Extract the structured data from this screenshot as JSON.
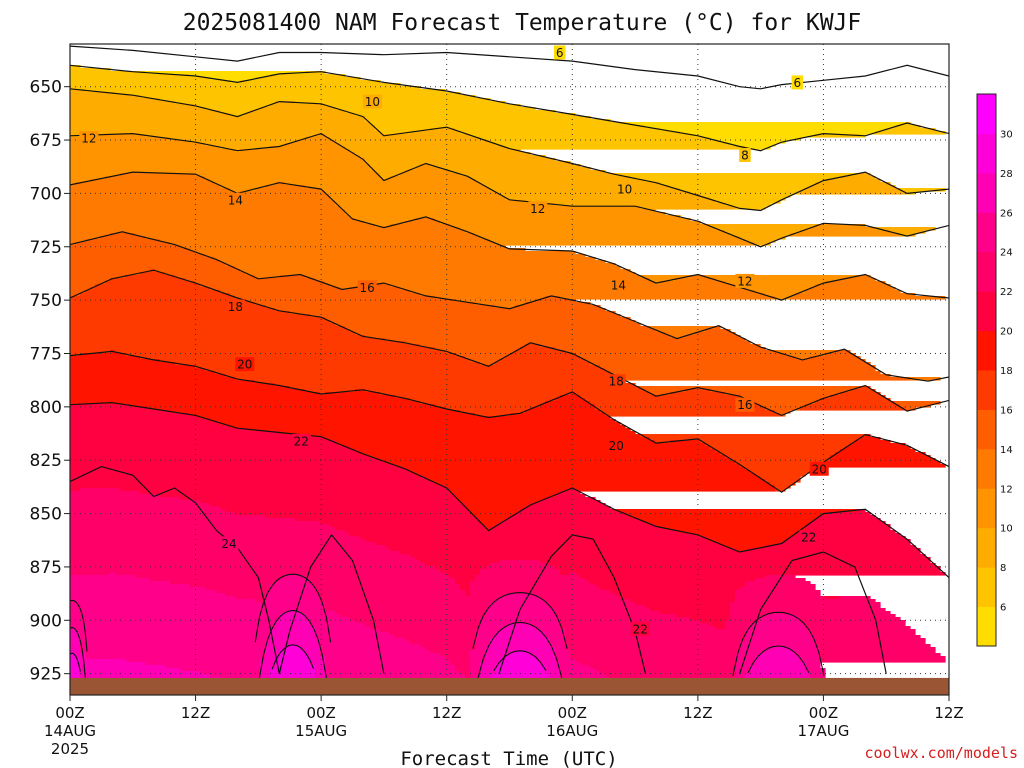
{
  "chart_data": {
    "type": "heatmap",
    "title": "2025081400 NAM Forecast Temperature (°C) for KWJF",
    "xlabel": "Forecast Time (UTC)",
    "ylabel": "",
    "credit": "coolwx.com/models",
    "x_ticks": [
      {
        "hour": 0,
        "line1": "00Z",
        "line2": "14AUG",
        "line3": "2025"
      },
      {
        "hour": 12,
        "line1": "12Z",
        "line2": "",
        "line3": ""
      },
      {
        "hour": 24,
        "line1": "00Z",
        "line2": "15AUG",
        "line3": ""
      },
      {
        "hour": 36,
        "line1": "12Z",
        "line2": "",
        "line3": ""
      },
      {
        "hour": 48,
        "line1": "00Z",
        "line2": "16AUG",
        "line3": ""
      },
      {
        "hour": 60,
        "line1": "12Z",
        "line2": "",
        "line3": ""
      },
      {
        "hour": 72,
        "line1": "00Z",
        "line2": "17AUG",
        "line3": ""
      },
      {
        "hour": 84,
        "line1": "12Z",
        "line2": "",
        "line3": ""
      }
    ],
    "x_range_hours": [
      0,
      84
    ],
    "y_ticks": [
      "650",
      "675",
      "700",
      "725",
      "750",
      "775",
      "800",
      "825",
      "850",
      "875",
      "900",
      "925"
    ],
    "y_range_hpa": [
      630,
      935
    ],
    "y_axis": "pressure (hPa), increasing downward",
    "grid": "dotted at every tick",
    "colorbar": {
      "levels": [
        6,
        8,
        10,
        12,
        14,
        16,
        18,
        20,
        22,
        24,
        26,
        28,
        30,
        32
      ],
      "colors": [
        "#ffdd00",
        "#ffc400",
        "#ffac00",
        "#ff9400",
        "#ff7a00",
        "#ff5e00",
        "#ff3a00",
        "#ff1400",
        "#ff0040",
        "#ff0068",
        "#ff008a",
        "#ff00b4",
        "#ff00d8",
        "#ff00ff"
      ]
    },
    "surface_color": "#9a5535",
    "surface_top_hpa": 927,
    "isotherms": [
      {
        "value": 6,
        "points": [
          [
            0,
            631
          ],
          [
            6,
            633
          ],
          [
            12,
            636
          ],
          [
            16,
            638
          ],
          [
            20,
            634
          ],
          [
            24,
            634
          ],
          [
            30,
            635
          ],
          [
            36,
            634
          ],
          [
            42,
            636
          ],
          [
            48,
            638
          ],
          [
            54,
            642
          ],
          [
            60,
            645
          ],
          [
            64,
            650
          ],
          [
            66,
            651
          ],
          [
            68,
            649
          ],
          [
            72,
            647
          ],
          [
            76,
            645
          ],
          [
            80,
            640
          ],
          [
            84,
            645
          ]
        ]
      },
      {
        "value": 8,
        "points": [
          [
            0,
            640
          ],
          [
            6,
            643
          ],
          [
            12,
            645
          ],
          [
            16,
            648
          ],
          [
            20,
            644
          ],
          [
            24,
            643
          ],
          [
            30,
            648
          ],
          [
            36,
            652
          ],
          [
            42,
            658
          ],
          [
            48,
            663
          ],
          [
            54,
            668
          ],
          [
            60,
            673
          ],
          [
            64,
            678
          ],
          [
            66,
            680
          ],
          [
            68,
            676
          ],
          [
            72,
            672
          ],
          [
            76,
            673
          ],
          [
            80,
            667
          ],
          [
            84,
            672
          ]
        ]
      },
      {
        "value": 10,
        "points": [
          [
            0,
            651
          ],
          [
            6,
            654
          ],
          [
            12,
            659
          ],
          [
            16,
            664
          ],
          [
            20,
            657
          ],
          [
            24,
            658
          ],
          [
            28,
            664
          ],
          [
            30,
            673
          ],
          [
            36,
            669
          ],
          [
            42,
            679
          ],
          [
            48,
            686
          ],
          [
            52,
            691
          ],
          [
            56,
            695
          ],
          [
            60,
            701
          ],
          [
            64,
            707
          ],
          [
            66,
            708
          ],
          [
            68,
            703
          ],
          [
            72,
            694
          ],
          [
            76,
            690
          ],
          [
            80,
            700
          ],
          [
            84,
            698
          ]
        ]
      },
      {
        "value": 12,
        "points": [
          [
            0,
            673
          ],
          [
            6,
            672
          ],
          [
            12,
            676
          ],
          [
            16,
            680
          ],
          [
            20,
            678
          ],
          [
            24,
            672
          ],
          [
            28,
            684
          ],
          [
            30,
            694
          ],
          [
            34,
            686
          ],
          [
            38,
            692
          ],
          [
            42,
            703
          ],
          [
            48,
            706
          ],
          [
            54,
            706
          ],
          [
            60,
            713
          ],
          [
            64,
            721
          ],
          [
            66,
            725
          ],
          [
            68,
            721
          ],
          [
            72,
            714
          ],
          [
            76,
            715
          ],
          [
            80,
            720
          ],
          [
            84,
            715
          ]
        ]
      },
      {
        "value": 14,
        "points": [
          [
            0,
            696
          ],
          [
            6,
            690
          ],
          [
            12,
            691
          ],
          [
            16,
            700
          ],
          [
            20,
            695
          ],
          [
            24,
            698
          ],
          [
            27,
            712
          ],
          [
            30,
            716
          ],
          [
            34,
            711
          ],
          [
            38,
            718
          ],
          [
            42,
            726
          ],
          [
            48,
            727
          ],
          [
            52,
            733
          ],
          [
            56,
            742
          ],
          [
            60,
            738
          ],
          [
            64,
            744
          ],
          [
            68,
            750
          ],
          [
            72,
            742
          ],
          [
            76,
            738
          ],
          [
            80,
            747
          ],
          [
            84,
            749
          ]
        ]
      },
      {
        "value": 16,
        "points": [
          [
            0,
            724
          ],
          [
            5,
            718
          ],
          [
            10,
            724
          ],
          [
            14,
            731
          ],
          [
            18,
            740
          ],
          [
            22,
            738
          ],
          [
            26,
            745
          ],
          [
            30,
            742
          ],
          [
            34,
            748
          ],
          [
            38,
            751
          ],
          [
            42,
            754
          ],
          [
            46,
            748
          ],
          [
            50,
            752
          ],
          [
            54,
            760
          ],
          [
            58,
            768
          ],
          [
            62,
            762
          ],
          [
            66,
            772
          ],
          [
            70,
            778
          ],
          [
            74,
            773
          ],
          [
            78,
            785
          ],
          [
            82,
            788
          ],
          [
            84,
            786
          ]
        ]
      },
      {
        "value": 18,
        "points": [
          [
            0,
            749
          ],
          [
            4,
            740
          ],
          [
            8,
            736
          ],
          [
            12,
            742
          ],
          [
            16,
            749
          ],
          [
            20,
            755
          ],
          [
            24,
            758
          ],
          [
            28,
            767
          ],
          [
            32,
            770
          ],
          [
            36,
            774
          ],
          [
            40,
            781
          ],
          [
            44,
            770
          ],
          [
            48,
            775
          ],
          [
            52,
            785
          ],
          [
            56,
            795
          ],
          [
            60,
            791
          ],
          [
            64,
            795
          ],
          [
            68,
            804
          ],
          [
            72,
            796
          ],
          [
            76,
            790
          ],
          [
            80,
            802
          ],
          [
            84,
            797
          ]
        ]
      },
      {
        "value": 20,
        "points": [
          [
            0,
            776
          ],
          [
            4,
            774
          ],
          [
            8,
            778
          ],
          [
            12,
            781
          ],
          [
            16,
            787
          ],
          [
            20,
            790
          ],
          [
            24,
            794
          ],
          [
            28,
            792
          ],
          [
            32,
            796
          ],
          [
            36,
            801
          ],
          [
            40,
            805
          ],
          [
            43,
            803
          ],
          [
            48,
            793
          ],
          [
            52,
            806
          ],
          [
            56,
            817
          ],
          [
            60,
            815
          ],
          [
            64,
            827
          ],
          [
            68,
            840
          ],
          [
            72,
            826
          ],
          [
            76,
            813
          ],
          [
            80,
            818
          ],
          [
            84,
            828
          ]
        ]
      },
      {
        "value": 22,
        "points": [
          [
            0,
            799
          ],
          [
            4,
            798
          ],
          [
            8,
            801
          ],
          [
            12,
            804
          ],
          [
            16,
            810
          ],
          [
            20,
            812
          ],
          [
            24,
            814
          ],
          [
            28,
            822
          ],
          [
            32,
            829
          ],
          [
            36,
            838
          ],
          [
            40,
            858
          ],
          [
            44,
            846
          ],
          [
            48,
            838
          ],
          [
            52,
            848
          ],
          [
            56,
            856
          ],
          [
            60,
            860
          ],
          [
            64,
            868
          ],
          [
            68,
            864
          ],
          [
            72,
            850
          ],
          [
            76,
            848
          ],
          [
            80,
            862
          ],
          [
            84,
            880
          ]
        ]
      },
      {
        "value": 24,
        "points": [
          [
            0,
            835
          ],
          [
            3,
            828
          ],
          [
            6,
            832
          ],
          [
            8,
            842
          ],
          [
            10,
            838
          ],
          [
            12,
            845
          ],
          [
            14,
            858
          ],
          [
            16,
            866
          ],
          [
            18,
            880
          ],
          [
            19,
            900
          ],
          [
            20,
            925
          ],
          [
            21,
            905
          ],
          [
            23,
            875
          ],
          [
            25,
            860
          ],
          [
            27,
            872
          ],
          [
            29,
            900
          ],
          [
            30,
            925
          ]
        ]
      },
      {
        "value": 24,
        "points": [
          [
            41,
            925
          ],
          [
            43,
            895
          ],
          [
            46,
            870
          ],
          [
            48,
            860
          ],
          [
            50,
            862
          ],
          [
            52,
            880
          ],
          [
            54,
            905
          ],
          [
            55,
            925
          ]
        ]
      },
      {
        "value": 24,
        "points": [
          [
            64,
            925
          ],
          [
            66,
            895
          ],
          [
            69,
            872
          ],
          [
            72,
            868
          ],
          [
            75,
            875
          ],
          [
            77,
            900
          ],
          [
            78,
            925
          ]
        ]
      }
    ],
    "contour_labels": [
      {
        "value": 6,
        "hour": 46.8,
        "hpa": 634
      },
      {
        "value": 6,
        "hour": 69.5,
        "hpa": 648
      },
      {
        "value": 10,
        "hour": 28.9,
        "hpa": 657
      },
      {
        "value": 12,
        "hour": 1.8,
        "hpa": 674
      },
      {
        "value": 8,
        "hour": 64.5,
        "hpa": 682
      },
      {
        "value": 10,
        "hour": 53.0,
        "hpa": 698
      },
      {
        "value": 14,
        "hour": 15.8,
        "hpa": 703
      },
      {
        "value": 12,
        "hour": 44.7,
        "hpa": 707
      },
      {
        "value": 12,
        "hour": 64.5,
        "hpa": 741
      },
      {
        "value": 16,
        "hour": 28.4,
        "hpa": 744
      },
      {
        "value": 14,
        "hour": 52.4,
        "hpa": 743
      },
      {
        "value": 18,
        "hour": 15.8,
        "hpa": 753
      },
      {
        "value": 20,
        "hour": 16.7,
        "hpa": 780
      },
      {
        "value": 18,
        "hour": 52.2,
        "hpa": 788
      },
      {
        "value": 16,
        "hour": 64.5,
        "hpa": 799
      },
      {
        "value": 22,
        "hour": 22.1,
        "hpa": 816
      },
      {
        "value": 20,
        "hour": 52.2,
        "hpa": 818
      },
      {
        "value": 20,
        "hour": 71.6,
        "hpa": 829
      },
      {
        "value": 22,
        "hour": 70.6,
        "hpa": 861
      },
      {
        "value": 24,
        "hour": 15.2,
        "hpa": 864
      },
      {
        "value": 22,
        "hour": 54.5,
        "hpa": 904
      }
    ],
    "warm_cores": [
      {
        "hour": 21.3,
        "peak": 32,
        "half_width_hours": 4.8,
        "top_hpa": 848
      },
      {
        "hour": 43.0,
        "peak": 32,
        "half_width_hours": 6.0,
        "top_hpa": 862
      },
      {
        "hour": 67.7,
        "peak": 30,
        "half_width_hours": 5.8,
        "top_hpa": 868
      },
      {
        "hour": 0.2,
        "peak": 32,
        "half_width_hours": 1.9,
        "top_hpa": 868
      }
    ]
  }
}
